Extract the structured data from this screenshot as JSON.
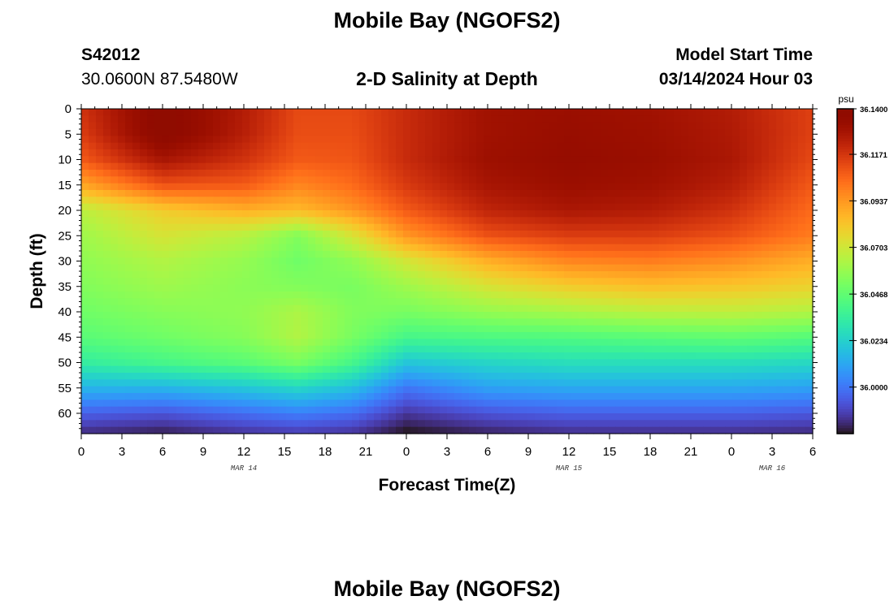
{
  "page": {
    "title": "Mobile Bay (NGOFS2)",
    "bottom_title": "Mobile Bay (NGOFS2)",
    "station": "S42012",
    "coords": "30.0600N  87.5480W",
    "subtitle": "2-D Salinity at Depth",
    "model_start_label": "Model Start Time",
    "model_start_value": "03/14/2024 Hour 03"
  },
  "chart_data": {
    "type": "heatmap",
    "xlabel": "Forecast Time(Z)",
    "ylabel": "Depth (ft)",
    "x_ticks": [
      "0",
      "3",
      "6",
      "9",
      "12",
      "15",
      "18",
      "21",
      "0",
      "3",
      "6",
      "9",
      "12",
      "15",
      "18",
      "21",
      "0",
      "3",
      "6"
    ],
    "x_range_hours": [
      0,
      54
    ],
    "y_ticks": [
      "0",
      "5",
      "10",
      "15",
      "20",
      "25",
      "30",
      "35",
      "40",
      "45",
      "50",
      "55",
      "60"
    ],
    "y_range": [
      0,
      64
    ],
    "y_inverted": true,
    "date_labels": [
      {
        "label": "MAR 14",
        "hour": 12
      },
      {
        "label": "MAR 15",
        "hour": 36
      },
      {
        "label": "MAR 16",
        "hour": 51
      }
    ],
    "colorbar": {
      "unit": "psu",
      "min": 35.9766,
      "max": 36.14,
      "ticks": [
        "36.1400",
        "36.1171",
        "36.0937",
        "36.0703",
        "36.0468",
        "36.0234",
        "36.0000"
      ],
      "colormap": "turbo"
    },
    "salinity_rows_hours": [
      0,
      6,
      12,
      16,
      20,
      24,
      30,
      36,
      42,
      48,
      54
    ],
    "salinity_rows": [
      {
        "depth": 0,
        "values": [
          36.118,
          36.14,
          36.125,
          36.112,
          36.112,
          36.12,
          36.13,
          36.132,
          36.13,
          36.125,
          36.114
        ]
      },
      {
        "depth": 5,
        "values": [
          36.115,
          36.14,
          36.124,
          36.111,
          36.111,
          36.12,
          36.13,
          36.133,
          36.131,
          36.126,
          36.114
        ]
      },
      {
        "depth": 10,
        "values": [
          36.108,
          36.128,
          36.118,
          36.108,
          36.109,
          36.12,
          36.131,
          36.134,
          36.132,
          36.127,
          36.112
        ]
      },
      {
        "depth": 15,
        "values": [
          36.09,
          36.11,
          36.108,
          36.098,
          36.104,
          36.116,
          36.128,
          36.132,
          36.13,
          36.124,
          36.108
        ]
      },
      {
        "depth": 20,
        "values": [
          36.066,
          36.08,
          36.088,
          36.085,
          36.094,
          36.108,
          36.122,
          36.127,
          36.125,
          36.118,
          36.104
        ]
      },
      {
        "depth": 25,
        "values": [
          36.06,
          36.072,
          36.065,
          36.054,
          36.072,
          36.094,
          36.11,
          36.115,
          36.115,
          36.11,
          36.1
        ]
      },
      {
        "depth": 30,
        "values": [
          36.057,
          36.064,
          36.058,
          36.05,
          36.057,
          36.071,
          36.088,
          36.098,
          36.1,
          36.096,
          36.088
        ]
      },
      {
        "depth": 35,
        "values": [
          36.054,
          36.06,
          36.056,
          36.054,
          36.052,
          36.06,
          36.072,
          36.08,
          36.084,
          36.082,
          36.078
        ]
      },
      {
        "depth": 40,
        "values": [
          36.05,
          36.055,
          36.057,
          36.063,
          36.054,
          36.052,
          36.058,
          36.062,
          36.066,
          36.067,
          36.064
        ]
      },
      {
        "depth": 45,
        "values": [
          36.045,
          36.05,
          36.055,
          36.064,
          36.052,
          36.04,
          36.042,
          36.043,
          36.045,
          36.047,
          36.044
        ]
      },
      {
        "depth": 50,
        "values": [
          36.034,
          36.04,
          36.045,
          36.052,
          36.04,
          36.02,
          36.025,
          36.028,
          36.028,
          36.028,
          36.026
        ]
      },
      {
        "depth": 55,
        "values": [
          36.015,
          36.015,
          36.02,
          36.025,
          36.018,
          36.0,
          36.01,
          36.012,
          36.012,
          36.012,
          36.01
        ]
      },
      {
        "depth": 60,
        "values": [
          35.995,
          35.992,
          35.998,
          36.002,
          35.998,
          35.985,
          35.992,
          35.995,
          35.995,
          35.995,
          35.993
        ]
      },
      {
        "depth": 64,
        "values": [
          35.982,
          35.979,
          35.984,
          35.986,
          35.984,
          35.976,
          35.98,
          35.983,
          35.983,
          35.983,
          35.982
        ]
      }
    ]
  }
}
